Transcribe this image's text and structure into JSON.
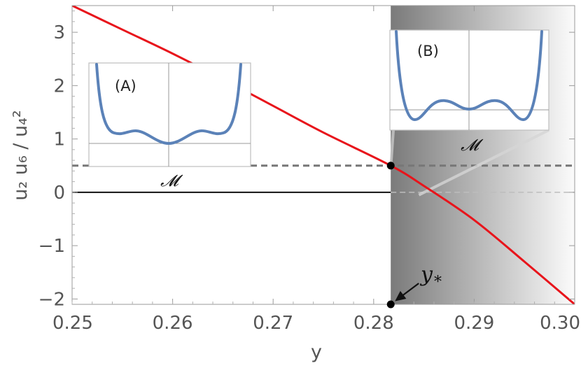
{
  "chart_data": {
    "type": "line",
    "xlabel": "y",
    "ylabel": "u₂ u₆ / u₄²",
    "xlim": [
      0.25,
      0.3
    ],
    "ylim": [
      -2.1,
      3.5
    ],
    "xticks": [
      0.25,
      0.26,
      0.27,
      0.28,
      0.29,
      0.3
    ],
    "xtick_labels": [
      "0.25",
      "0.26",
      "0.27",
      "0.28",
      "0.29",
      "0.30"
    ],
    "yticks": [
      -2,
      -1,
      0,
      1,
      2,
      3
    ],
    "ytick_labels": [
      "−2",
      "−1",
      "0",
      "1",
      "2",
      "3"
    ],
    "series": [
      {
        "color": "#e8141b",
        "x": [
          0.25,
          0.255,
          0.26,
          0.265,
          0.27,
          0.275,
          0.2817,
          0.285,
          0.29,
          0.295,
          0.3
        ],
        "y": [
          3.5,
          3.05,
          2.6,
          2.12,
          1.62,
          1.12,
          0.5,
          0.12,
          -0.52,
          -1.3,
          -2.1
        ]
      }
    ],
    "reference_lines": [
      {
        "style": "dashed",
        "y": 0.5,
        "color": "#777777"
      },
      {
        "style": "solid",
        "y": 0,
        "x_end": 0.2817,
        "color": "#111111"
      }
    ],
    "points": [
      {
        "x": 0.2817,
        "y": 0.5
      },
      {
        "x": 0.2817,
        "y": -2.1
      }
    ],
    "shaded_region": {
      "x_start": 0.2817,
      "x_end": 0.3,
      "gradient": "dark-to-light"
    },
    "annotation": {
      "text": "y",
      "subscript": "*",
      "target_x": 0.2817,
      "target_y": -2.1
    },
    "insets": [
      {
        "label": "(A)",
        "axis_label": "𝓜",
        "potential": "single-minimum"
      },
      {
        "label": "(B)",
        "axis_label": "𝓜",
        "potential": "three-minima"
      }
    ],
    "grid": false
  }
}
